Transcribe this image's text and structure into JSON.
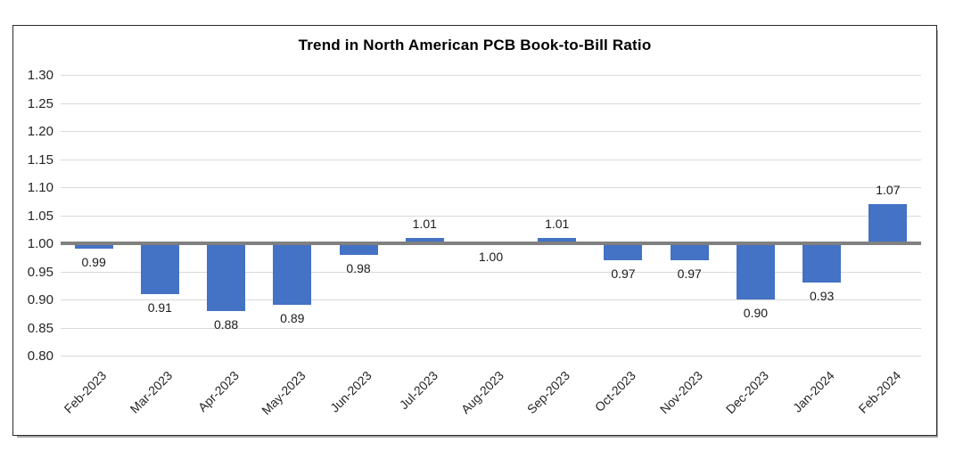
{
  "chart_data": {
    "type": "bar",
    "title": "Trend in North American PCB Book-to-Bill Ratio",
    "categories": [
      "Feb-2023",
      "Mar-2023",
      "Apr-2023",
      "May-2023",
      "Jun-2023",
      "Jul-2023",
      "Aug-2023",
      "Sep-2023",
      "Oct-2023",
      "Nov-2023",
      "Dec-2023",
      "Jan-2024",
      "Feb-2024"
    ],
    "values": [
      0.99,
      0.91,
      0.88,
      0.89,
      0.98,
      1.01,
      1.0,
      1.01,
      0.97,
      0.97,
      0.9,
      0.93,
      1.07
    ],
    "data_labels": [
      "0.99",
      "0.91",
      "0.88",
      "0.89",
      "0.98",
      "1.01",
      "1.00",
      "1.01",
      "0.97",
      "0.97",
      "0.90",
      "0.93",
      "1.07"
    ],
    "xlabel": "",
    "ylabel": "",
    "ylim": [
      0.8,
      1.3
    ],
    "ytick_step": 0.05,
    "ytick_labels": [
      "1.30",
      "1.25",
      "1.20",
      "1.15",
      "1.10",
      "1.05",
      "1.00",
      "0.95",
      "0.90",
      "0.85",
      "0.80"
    ],
    "baseline": 1.0,
    "grid": true,
    "legend_position": "none",
    "colors": {
      "bar": "#4472C4",
      "baseline_line": "#808080",
      "gridline": "#D9D9D9",
      "title_text": "#000000",
      "axis_text": "#262626",
      "data_label_text": "#1A1A1A",
      "frame_border": "#2B2B2B",
      "frame_shadow": "#A6A6A6",
      "background": "#FFFFFF"
    }
  }
}
